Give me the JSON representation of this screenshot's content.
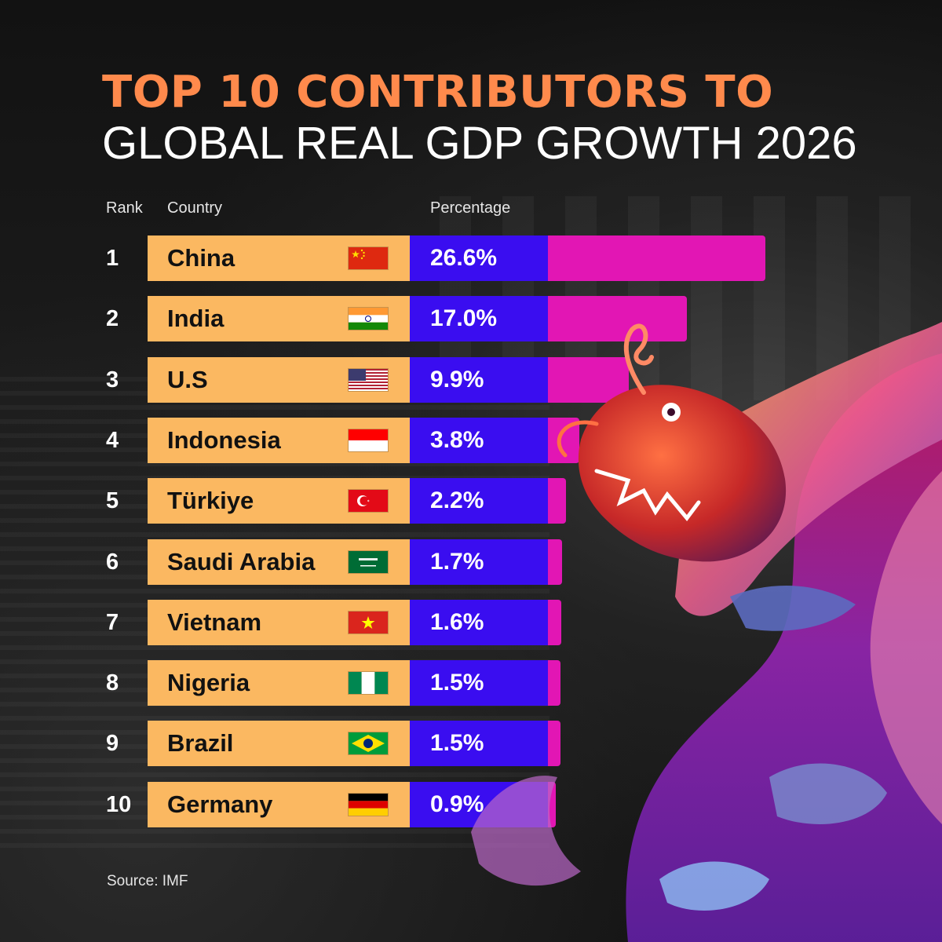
{
  "title": {
    "line1": "TOP 10 CONTRIBUTORS TO",
    "line2": "GLOBAL REAL GDP GROWTH 2026"
  },
  "headers": {
    "rank": "Rank",
    "country": "Country",
    "percentage": "Percentage"
  },
  "source": "Source: IMF",
  "colors": {
    "title_accent": "#ff8a4c",
    "country_cell": "#fbb861",
    "pct_cell": "#3a0df0",
    "bar": "#e216b4"
  },
  "chart_data": {
    "type": "bar",
    "orientation": "horizontal",
    "title": "TOP 10 CONTRIBUTORS TO GLOBAL REAL GDP GROWTH 2026",
    "columns": [
      "Rank",
      "Country",
      "Percentage"
    ],
    "rows": [
      {
        "rank": "1",
        "country": "China",
        "label": "26.6%",
        "value": 26.6,
        "flag": "china-flag-icon"
      },
      {
        "rank": "2",
        "country": "India",
        "label": "17.0%",
        "value": 17.0,
        "flag": "india-flag-icon"
      },
      {
        "rank": "3",
        "country": "U.S",
        "label": "9.9%",
        "value": 9.9,
        "flag": "us-flag-icon"
      },
      {
        "rank": "4",
        "country": "Indonesia",
        "label": "3.8%",
        "value": 3.8,
        "flag": "indonesia-flag-icon"
      },
      {
        "rank": "5",
        "country": "Türkiye",
        "label": "2.2%",
        "value": 2.2,
        "flag": "turkiye-flag-icon"
      },
      {
        "rank": "6",
        "country": "Saudi Arabia",
        "label": "1.7%",
        "value": 1.7,
        "flag": "saudi-arabia-flag-icon"
      },
      {
        "rank": "7",
        "country": "Vietnam",
        "label": "1.6%",
        "value": 1.6,
        "flag": "vietnam-flag-icon"
      },
      {
        "rank": "8",
        "country": "Nigeria",
        "label": "1.5%",
        "value": 1.5,
        "flag": "nigeria-flag-icon"
      },
      {
        "rank": "9",
        "country": "Brazil",
        "label": "1.5%",
        "value": 1.5,
        "flag": "brazil-flag-icon"
      },
      {
        "rank": "10",
        "country": "Germany",
        "label": "0.9%",
        "value": 0.9,
        "flag": "germany-flag-icon"
      }
    ],
    "source": "IMF"
  }
}
